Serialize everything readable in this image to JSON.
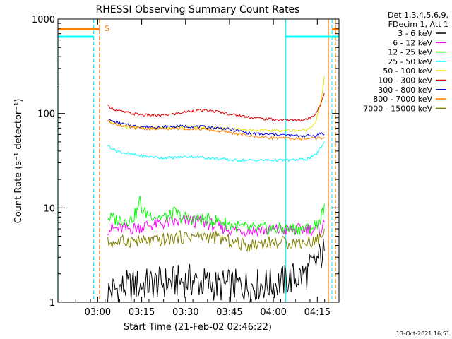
{
  "chart_data": {
    "type": "line",
    "title": "RHESSI Observing Summary Count Rates",
    "xlabel": "Start Time (21-Feb-02 02:46:22)",
    "ylabel": "Count Rate (s⁻¹ detector⁻¹)",
    "yscale": "log",
    "ylim": [
      1,
      1000
    ],
    "xlim_minutes": [
      0,
      96
    ],
    "xtick_labels": [
      "03:00",
      "03:15",
      "03:30",
      "03:45",
      "04:00",
      "04:15"
    ],
    "xtick_minutes": [
      13.6,
      28.6,
      43.6,
      58.6,
      73.6,
      88.6
    ],
    "ytick_labels": [
      "1",
      "10",
      "100",
      "1000"
    ],
    "ytick_values": [
      1,
      10,
      100,
      1000
    ],
    "legend": {
      "header1": "Det 1,3,4,5,6,9,",
      "header2": "FDecim 1, Att 1",
      "position": "right"
    },
    "series": [
      {
        "name": "3 - 6 keV",
        "color": "#000000",
        "points": [
          [
            17,
            1.3
          ],
          [
            25,
            1.5
          ],
          [
            35,
            1.6
          ],
          [
            45,
            1.7
          ],
          [
            55,
            1.5
          ],
          [
            65,
            1.5
          ],
          [
            75,
            1.6
          ],
          [
            85,
            2.0
          ],
          [
            91,
            3.5
          ]
        ]
      },
      {
        "name": "6 - 12 keV",
        "color": "#ff00ff",
        "points": [
          [
            17,
            6
          ],
          [
            25,
            6
          ],
          [
            30,
            6.5
          ],
          [
            35,
            6.8
          ],
          [
            40,
            7
          ],
          [
            45,
            7.3
          ],
          [
            50,
            7.0
          ],
          [
            55,
            6.3
          ],
          [
            60,
            5.8
          ],
          [
            65,
            5.8
          ],
          [
            70,
            5.8
          ],
          [
            75,
            5.8
          ],
          [
            80,
            5.8
          ],
          [
            85,
            6
          ],
          [
            88,
            5.8
          ],
          [
            90,
            6
          ],
          [
            91,
            7
          ]
        ]
      },
      {
        "name": "12 - 25 keV",
        "color": "#00ff00",
        "points": [
          [
            17,
            8
          ],
          [
            20,
            7.5
          ],
          [
            25,
            7.5
          ],
          [
            27,
            9
          ],
          [
            28,
            12
          ],
          [
            29,
            9
          ],
          [
            32,
            8.5
          ],
          [
            35,
            8
          ],
          [
            38,
            8
          ],
          [
            40,
            9
          ],
          [
            42,
            8
          ],
          [
            45,
            7.7
          ],
          [
            50,
            7.5
          ],
          [
            55,
            7.3
          ],
          [
            60,
            6.5
          ],
          [
            65,
            6
          ],
          [
            70,
            6
          ],
          [
            75,
            6
          ],
          [
            80,
            6
          ],
          [
            85,
            6
          ],
          [
            88,
            6.5
          ],
          [
            90,
            8
          ],
          [
            91,
            11
          ]
        ]
      },
      {
        "name": "25 - 50 keV",
        "color": "#00ffff",
        "points": [
          [
            17,
            46
          ],
          [
            20,
            40
          ],
          [
            25,
            37
          ],
          [
            30,
            35
          ],
          [
            35,
            34
          ],
          [
            40,
            34
          ],
          [
            45,
            35
          ],
          [
            50,
            34
          ],
          [
            55,
            33
          ],
          [
            60,
            32
          ],
          [
            65,
            32
          ],
          [
            70,
            32
          ],
          [
            75,
            32
          ],
          [
            80,
            32
          ],
          [
            85,
            33
          ],
          [
            88,
            36
          ],
          [
            90,
            45
          ],
          [
            91,
            50
          ]
        ]
      },
      {
        "name": "50 - 100 keV",
        "color": "#e6e600",
        "points": [
          [
            17,
            86
          ],
          [
            20,
            76
          ],
          [
            25,
            71
          ],
          [
            30,
            70
          ],
          [
            35,
            70
          ],
          [
            40,
            71
          ],
          [
            45,
            72
          ],
          [
            50,
            71
          ],
          [
            55,
            70
          ],
          [
            60,
            69
          ],
          [
            65,
            67
          ],
          [
            70,
            66
          ],
          [
            75,
            66
          ],
          [
            80,
            66
          ],
          [
            85,
            67
          ],
          [
            88,
            80
          ],
          [
            90,
            140
          ],
          [
            91,
            250
          ]
        ]
      },
      {
        "name": "100 - 300 keV",
        "color": "#e00000",
        "points": [
          [
            17,
            120
          ],
          [
            20,
            108
          ],
          [
            25,
            100
          ],
          [
            30,
            96
          ],
          [
            35,
            95
          ],
          [
            40,
            99
          ],
          [
            45,
            106
          ],
          [
            50,
            108
          ],
          [
            55,
            104
          ],
          [
            60,
            97
          ],
          [
            65,
            92
          ],
          [
            70,
            88
          ],
          [
            75,
            86
          ],
          [
            80,
            85
          ],
          [
            85,
            86
          ],
          [
            88,
            100
          ],
          [
            90,
            130
          ],
          [
            91,
            165
          ]
        ]
      },
      {
        "name": "300 - 800 keV",
        "color": "#0000dd",
        "points": [
          [
            17,
            86
          ],
          [
            20,
            80
          ],
          [
            25,
            74
          ],
          [
            30,
            72
          ],
          [
            35,
            72
          ],
          [
            40,
            73
          ],
          [
            45,
            73
          ],
          [
            50,
            72
          ],
          [
            55,
            70
          ],
          [
            60,
            67
          ],
          [
            65,
            62
          ],
          [
            70,
            60
          ],
          [
            75,
            60
          ],
          [
            80,
            58
          ],
          [
            85,
            58
          ],
          [
            88,
            58
          ],
          [
            90,
            62
          ],
          [
            91,
            60
          ]
        ]
      },
      {
        "name": "800 - 7000 keV",
        "color": "#ff8000",
        "points": [
          [
            17,
            84
          ],
          [
            20,
            76
          ],
          [
            25,
            71
          ],
          [
            30,
            69
          ],
          [
            35,
            68
          ],
          [
            40,
            69
          ],
          [
            45,
            69
          ],
          [
            50,
            68
          ],
          [
            55,
            65
          ],
          [
            60,
            62
          ],
          [
            65,
            58
          ],
          [
            70,
            56
          ],
          [
            75,
            55
          ],
          [
            80,
            54
          ],
          [
            85,
            54
          ],
          [
            88,
            55
          ],
          [
            90,
            55
          ],
          [
            91,
            56
          ]
        ]
      },
      {
        "name": "7000 - 15000 keV",
        "color": "#808000",
        "points": [
          [
            17,
            4.3
          ],
          [
            20,
            4.3
          ],
          [
            25,
            4.5
          ],
          [
            30,
            4.4
          ],
          [
            35,
            4.5
          ],
          [
            40,
            4.8
          ],
          [
            45,
            5.0
          ],
          [
            50,
            5.0
          ],
          [
            55,
            4.8
          ],
          [
            60,
            4.3
          ],
          [
            65,
            4.0
          ],
          [
            70,
            4.3
          ],
          [
            75,
            4.3
          ],
          [
            80,
            4.3
          ],
          [
            85,
            4.3
          ],
          [
            88,
            4.5
          ],
          [
            90,
            5
          ],
          [
            91,
            6
          ]
        ]
      }
    ],
    "flag_markers": [
      {
        "label": "S",
        "x_minutes": 15.2,
        "color": "#ff8000"
      }
    ],
    "flag_lines": [
      {
        "name": "saa-dashed",
        "x_minutes": 12.2,
        "color": "#00ffff",
        "dashed": true
      },
      {
        "name": "attenuator-dashed-1",
        "x_minutes": 14.2,
        "color": "#ff8000",
        "dashed": true
      },
      {
        "name": "night-line",
        "x_minutes": 77.8,
        "color": "#00ffff",
        "dashed": false
      },
      {
        "name": "attenuator-solid",
        "x_minutes": 92.4,
        "color": "#ff8000",
        "dashed": false
      },
      {
        "name": "night-dashed",
        "x_minutes": 93.6,
        "color": "#00ffff",
        "dashed": true
      },
      {
        "name": "attenuator-dashed-2",
        "x_minutes": 94.8,
        "color": "#ff8000",
        "dashed": true
      }
    ],
    "timestamp": "13-Oct-2021 16:51"
  }
}
